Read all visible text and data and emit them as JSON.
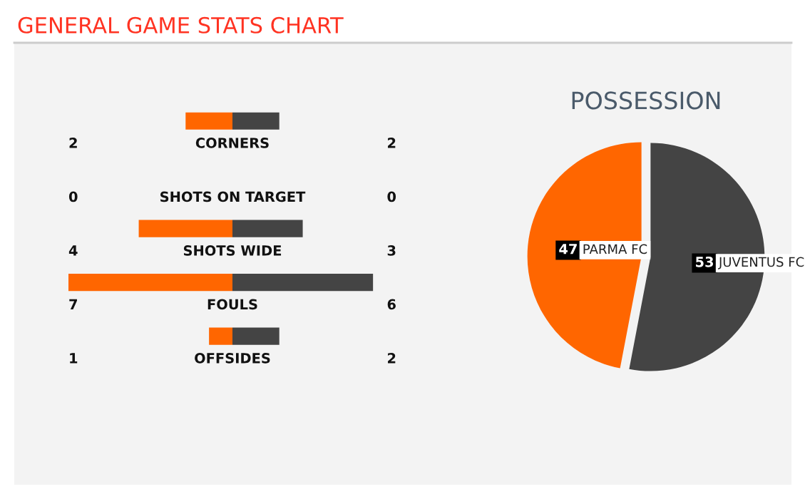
{
  "chart_data": [
    {
      "type": "bar",
      "orientation": "horizontal",
      "title": "GENERAL GAME STATS CHART",
      "categories": [
        "CORNERS",
        "SHOTS ON TARGET",
        "SHOTS WIDE",
        "FOULS",
        "OFFSIDES"
      ],
      "series": [
        {
          "color": "#ff6600",
          "values": [
            2,
            0,
            4,
            7,
            1
          ]
        }
      ],
      "data_labels": true,
      "tick_labels": false
    },
    {
      "type": "bar",
      "orientation": "horizontal",
      "categories": [
        null,
        null,
        null,
        null,
        null
      ],
      "series": [
        {
          "color": "#444444",
          "values": [
            2,
            0,
            3,
            6,
            2
          ]
        }
      ],
      "data_labels": true,
      "tick_labels": false
    },
    {
      "type": "pie",
      "title": "POSSESSION",
      "categories": [
        "PARMA FC",
        "JUVENTUS FC"
      ],
      "values": [
        47,
        53
      ],
      "colors": [
        "#ff6600",
        "#444444"
      ],
      "data_labels": true
    }
  ]
}
